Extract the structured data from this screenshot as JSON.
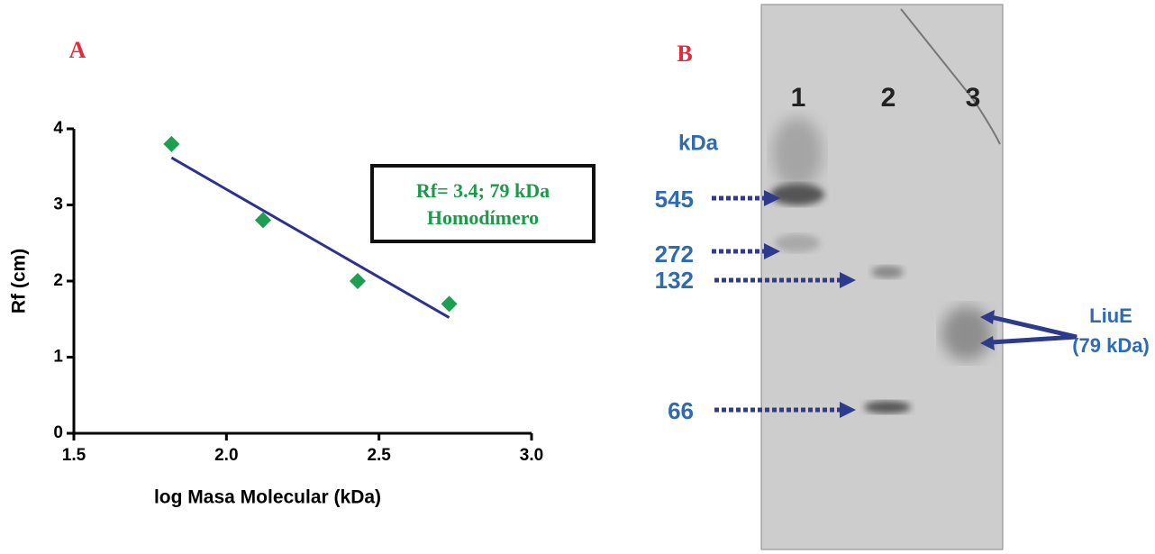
{
  "chart_data": {
    "type": "scatter",
    "x": [
      1.82,
      2.12,
      2.43,
      2.73
    ],
    "values": [
      3.8,
      2.8,
      2.0,
      1.7
    ],
    "color": "#1e9e50",
    "trendline": {
      "x": [
        1.82,
        2.73
      ],
      "values": [
        3.62,
        1.52
      ],
      "color": "#2e3192"
    },
    "x_label": "log Masa Molecular (kDa)",
    "y_label": "Rf (cm)",
    "xlim": [
      1.5,
      3.0
    ],
    "ylim": [
      0,
      4
    ],
    "xticks": [
      {
        "value": 1.5,
        "label": "1.5"
      },
      {
        "value": 2.0,
        "label": "2.0"
      },
      2.5,
      {
        "value": 3.0,
        "label": "3.0"
      }
    ],
    "yticks": [
      0,
      1,
      2,
      3,
      4
    ],
    "annotation": [
      "Rf= 3.4; 79 kDa",
      "Homodímero"
    ]
  },
  "panel_labels": [
    "A",
    "B"
  ],
  "gel": {
    "lanes": [
      "1",
      "2",
      "3"
    ],
    "unit": "kDa",
    "markers": [
      "545",
      "272",
      "132",
      "66"
    ],
    "target": [
      "LiuE",
      "(79 kDa)"
    ]
  }
}
